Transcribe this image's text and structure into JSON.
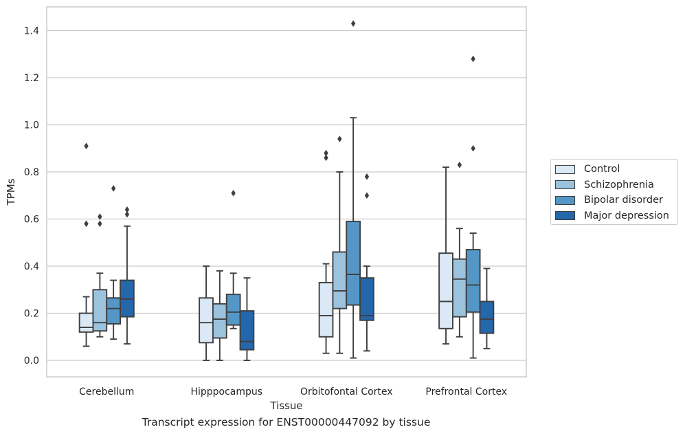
{
  "caption": "Transcript expression for ENST00000447092 by tissue",
  "chart_data": {
    "type": "box",
    "xlabel": "Tissue",
    "ylabel": "TPMs",
    "ylim": [
      -0.07,
      1.5
    ],
    "yticks": [
      "0.0",
      "0.2",
      "0.4",
      "0.6",
      "0.8",
      "1.0",
      "1.2",
      "1.4"
    ],
    "grid": "horizontal",
    "legend_position": "right",
    "categories": [
      "Cerebellum",
      "Hipppocampus",
      "Orbitofontal Cortex",
      "Prefrontal Cortex"
    ],
    "series": [
      {
        "name": "Control",
        "color": "#dbe9f6",
        "boxes": [
          {
            "whislo": 0.06,
            "q1": 0.12,
            "med": 0.14,
            "q3": 0.2,
            "whishi": 0.27,
            "fliers": [
              0.91,
              0.58
            ]
          },
          {
            "whislo": 0.0,
            "q1": 0.075,
            "med": 0.16,
            "q3": 0.265,
            "whishi": 0.4,
            "fliers": []
          },
          {
            "whislo": 0.03,
            "q1": 0.1,
            "med": 0.19,
            "q3": 0.33,
            "whishi": 0.41,
            "fliers": [
              0.88,
              0.86
            ]
          },
          {
            "whislo": 0.07,
            "q1": 0.135,
            "med": 0.25,
            "q3": 0.455,
            "whishi": 0.82,
            "fliers": []
          }
        ]
      },
      {
        "name": "Schizophrenia",
        "color": "#9cc3de",
        "boxes": [
          {
            "whislo": 0.1,
            "q1": 0.125,
            "med": 0.16,
            "q3": 0.3,
            "whishi": 0.37,
            "fliers": [
              0.61,
              0.58
            ]
          },
          {
            "whislo": 0.0,
            "q1": 0.095,
            "med": 0.175,
            "q3": 0.24,
            "whishi": 0.38,
            "fliers": []
          },
          {
            "whislo": 0.03,
            "q1": 0.22,
            "med": 0.295,
            "q3": 0.46,
            "whishi": 0.8,
            "fliers": [
              0.94
            ]
          },
          {
            "whislo": 0.1,
            "q1": 0.185,
            "med": 0.345,
            "q3": 0.43,
            "whishi": 0.56,
            "fliers": [
              0.83
            ]
          }
        ]
      },
      {
        "name": "Bipolar disorder",
        "color": "#5497c6",
        "boxes": [
          {
            "whislo": 0.09,
            "q1": 0.155,
            "med": 0.22,
            "q3": 0.265,
            "whishi": 0.34,
            "fliers": [
              0.73
            ]
          },
          {
            "whislo": 0.135,
            "q1": 0.15,
            "med": 0.205,
            "q3": 0.28,
            "whishi": 0.37,
            "fliers": [
              0.71
            ]
          },
          {
            "whislo": 0.01,
            "q1": 0.235,
            "med": 0.365,
            "q3": 0.59,
            "whishi": 1.03,
            "fliers": [
              1.43
            ]
          },
          {
            "whislo": 0.01,
            "q1": 0.205,
            "med": 0.32,
            "q3": 0.47,
            "whishi": 0.54,
            "fliers": [
              1.28,
              0.9
            ]
          }
        ]
      },
      {
        "name": "Major depression",
        "color": "#2467ab",
        "boxes": [
          {
            "whislo": 0.07,
            "q1": 0.185,
            "med": 0.26,
            "q3": 0.34,
            "whishi": 0.57,
            "fliers": [
              0.64,
              0.62
            ]
          },
          {
            "whislo": 0.0,
            "q1": 0.045,
            "med": 0.08,
            "q3": 0.21,
            "whishi": 0.35,
            "fliers": []
          },
          {
            "whislo": 0.04,
            "q1": 0.17,
            "med": 0.19,
            "q3": 0.35,
            "whishi": 0.4,
            "fliers": [
              0.78,
              0.7
            ]
          },
          {
            "whislo": 0.05,
            "q1": 0.115,
            "med": 0.175,
            "q3": 0.25,
            "whishi": 0.39,
            "fliers": []
          }
        ]
      }
    ]
  }
}
